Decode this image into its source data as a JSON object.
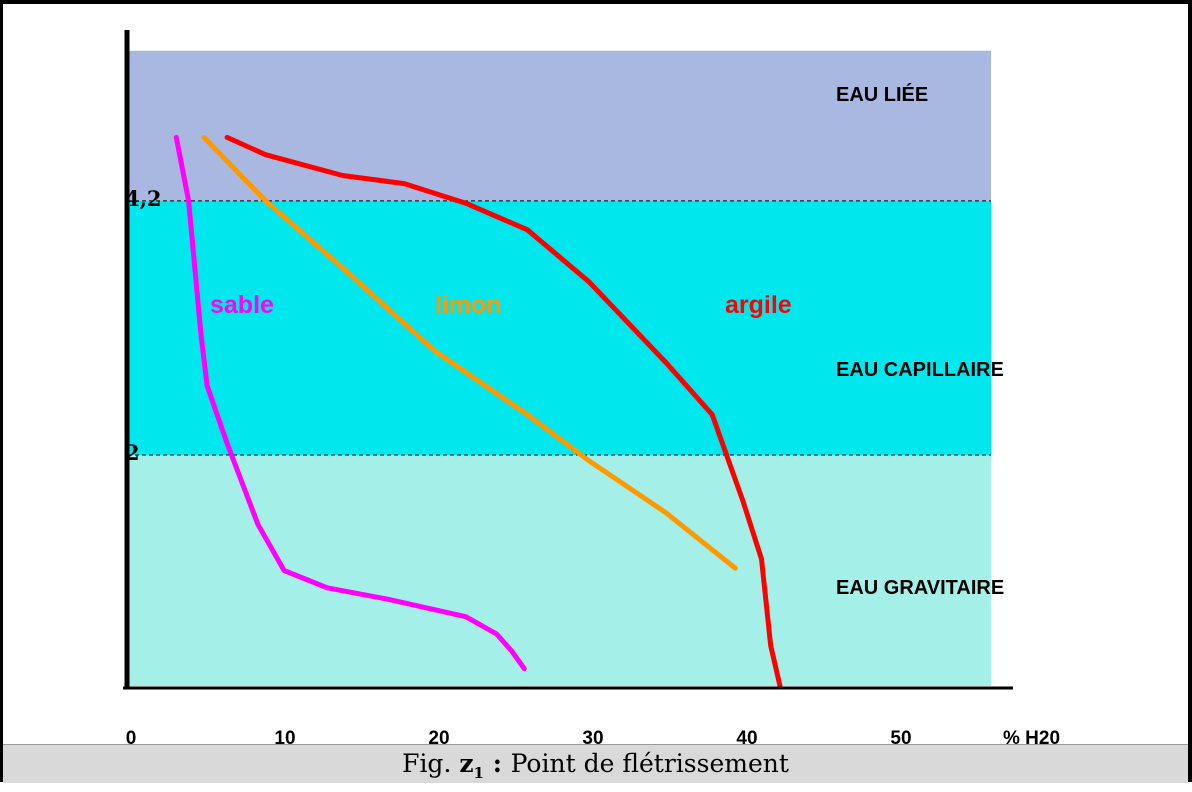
{
  "caption": {
    "prefix": "Fig. ",
    "fig_letter": "z",
    "fig_index": "1",
    "colon": " : ",
    "text": "Point de flétrissement"
  },
  "chart_data": {
    "type": "line",
    "title": "",
    "xlabel": "% H20",
    "ylabel": "",
    "xlim": [
      0,
      52
    ],
    "ylim": [
      0,
      5.5
    ],
    "x_ticks": [
      "0",
      "10",
      "20",
      "30",
      "40",
      "50"
    ],
    "x_unit_label": "% H20",
    "y_ticks": [
      {
        "value": 4.2,
        "label": "4,2"
      },
      {
        "value": 2,
        "label": "2"
      }
    ],
    "zones": [
      {
        "name": "EAU LIÉE",
        "from": 4.2,
        "to": 5.5,
        "color": "#a8b8e0"
      },
      {
        "name": "EAU CAPILLAIRE",
        "from": 2,
        "to": 4.2,
        "color": "#00e8ee"
      },
      {
        "name": "EAU GRAVITAIRE",
        "from": 0,
        "to": 2,
        "color": "#a4f0e8"
      }
    ],
    "grid": false,
    "series": [
      {
        "name": "sable",
        "color": "#ff00ff",
        "points": [
          [
            3.2,
            4.75
          ],
          [
            4.0,
            4.2
          ],
          [
            4.8,
            3.05
          ],
          [
            5.2,
            2.6
          ],
          [
            6.5,
            2.1
          ],
          [
            8.5,
            1.4
          ],
          [
            10.2,
            1.0
          ],
          [
            13,
            0.85
          ],
          [
            17,
            0.75
          ],
          [
            22,
            0.6
          ],
          [
            24,
            0.45
          ],
          [
            25,
            0.3
          ],
          [
            25.8,
            0.15
          ]
        ]
      },
      {
        "name": "limon",
        "color": "#ff9900",
        "points": [
          [
            5,
            4.75
          ],
          [
            9,
            4.2
          ],
          [
            14,
            3.62
          ],
          [
            20,
            2.9
          ],
          [
            26,
            2.35
          ],
          [
            30,
            1.95
          ],
          [
            35,
            1.5
          ],
          [
            39.5,
            1.02
          ]
        ]
      },
      {
        "name": "argile",
        "color": "#ff0000",
        "points": [
          [
            6.5,
            4.75
          ],
          [
            9,
            4.6
          ],
          [
            14,
            4.42
          ],
          [
            18,
            4.35
          ],
          [
            22,
            4.18
          ],
          [
            26,
            3.95
          ],
          [
            30,
            3.5
          ],
          [
            35,
            2.8
          ],
          [
            38,
            2.35
          ],
          [
            40,
            1.6
          ],
          [
            41.2,
            1.1
          ],
          [
            41.8,
            0.35
          ],
          [
            42.4,
            0.0
          ]
        ]
      }
    ]
  }
}
